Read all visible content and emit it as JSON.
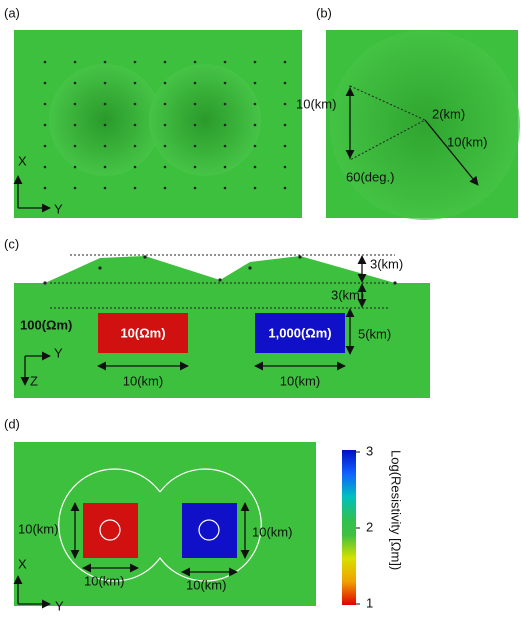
{
  "panels": [
    {
      "label": "(a)",
      "axes": {
        "x": "X",
        "y": "Y"
      }
    },
    {
      "label": "(b)",
      "annotations": [
        "10(km)",
        "2(km)",
        "10(km)",
        "60(deg.)"
      ]
    },
    {
      "label": "(c)",
      "annotations": [
        "3(km)",
        "3(km)",
        "5(km)",
        "10(km)",
        "10(km)"
      ],
      "background": "100(Ωm)",
      "blocks": [
        "10(Ωm)",
        "1,000(Ωm)"
      ],
      "axes": {
        "y": "Y",
        "z": "Z"
      }
    },
    {
      "label": "(d)",
      "annotations": [
        "10(km)",
        "10(km)",
        "10(km)",
        "10(km)"
      ],
      "axes": {
        "x": "X",
        "y": "Y"
      }
    }
  ],
  "colorbar": {
    "title": "Log(Resistivity [Ωm])",
    "lim": [
      1,
      3
    ],
    "ticks": [
      1,
      2,
      3
    ]
  }
}
